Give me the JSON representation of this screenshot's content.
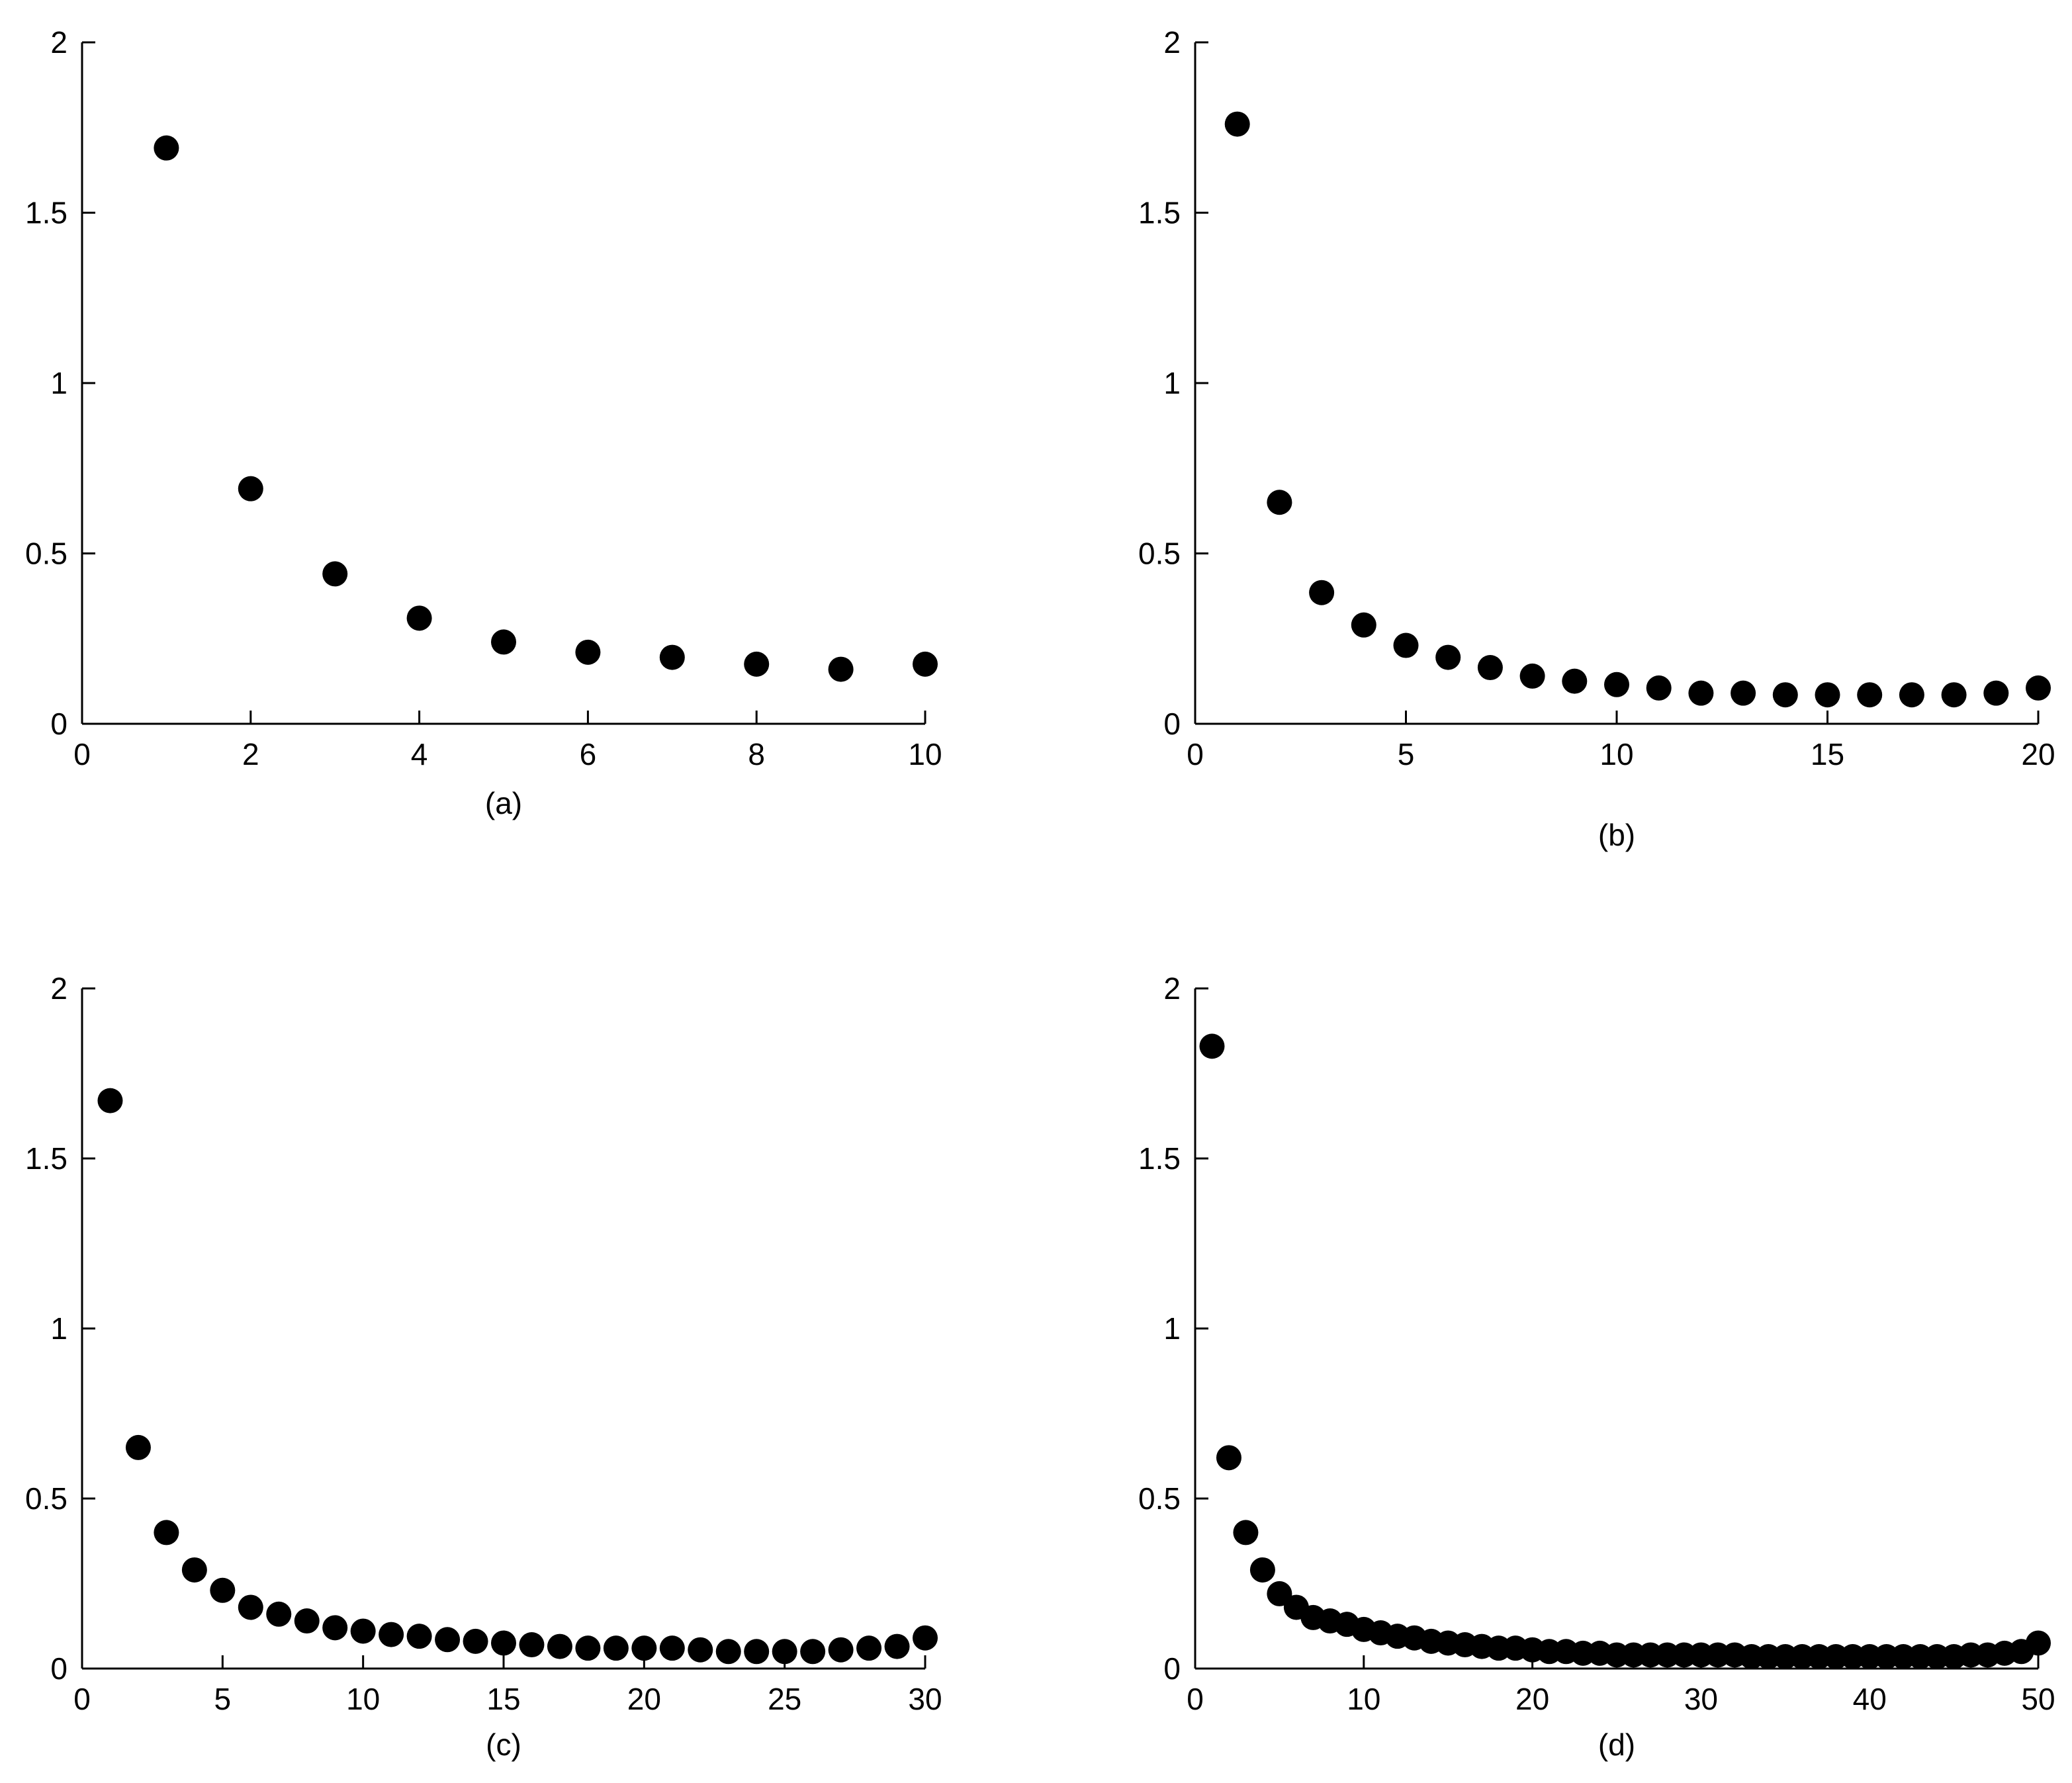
{
  "figure": {
    "panel_count": 4,
    "marker_color": "#000000",
    "axis_color": "#000000",
    "background": "#ffffff"
  },
  "chart_data": [
    {
      "type": "scatter",
      "panel_label": "(a)",
      "title": "",
      "xlabel": "",
      "ylabel": "",
      "xlim": [
        0,
        10
      ],
      "ylim": [
        0,
        2
      ],
      "xticks": [
        0,
        2,
        4,
        6,
        8,
        10
      ],
      "xtick_labels": [
        "0",
        "2",
        "4",
        "6",
        "8",
        "10"
      ],
      "yticks": [
        0,
        0.5,
        1,
        1.5,
        2
      ],
      "ytick_labels": [
        "0",
        "0.5",
        "1",
        "1.5",
        "2"
      ],
      "grid": false,
      "legend": "none",
      "x": [
        1,
        2,
        3,
        4,
        5,
        6,
        7,
        8,
        9,
        10
      ],
      "y": [
        1.69,
        0.69,
        0.44,
        0.31,
        0.24,
        0.21,
        0.195,
        0.175,
        0.16,
        0.175
      ]
    },
    {
      "type": "scatter",
      "panel_label": "(b)",
      "title": "",
      "xlabel": "",
      "ylabel": "",
      "xlim": [
        0,
        20
      ],
      "ylim": [
        0,
        2
      ],
      "xticks": [
        0,
        5,
        10,
        15,
        20
      ],
      "xtick_labels": [
        "0",
        "5",
        "10",
        "15",
        "20"
      ],
      "yticks": [
        0,
        0.5,
        1,
        1.5,
        2
      ],
      "ytick_labels": [
        "0",
        "0.5",
        "1",
        "1.5",
        "2"
      ],
      "grid": false,
      "legend": "none",
      "x": [
        1,
        2,
        3,
        4,
        5,
        6,
        7,
        8,
        9,
        10,
        11,
        12,
        13,
        14,
        15,
        16,
        17,
        18,
        19,
        20
      ],
      "y": [
        1.76,
        0.65,
        0.385,
        0.29,
        0.23,
        0.195,
        0.165,
        0.14,
        0.125,
        0.115,
        0.105,
        0.09,
        0.09,
        0.085,
        0.085,
        0.085,
        0.085,
        0.085,
        0.09,
        0.105
      ]
    },
    {
      "type": "scatter",
      "panel_label": "(c)",
      "title": "",
      "xlabel": "",
      "ylabel": "",
      "xlim": [
        0,
        30
      ],
      "ylim": [
        0,
        2
      ],
      "xticks": [
        0,
        5,
        10,
        15,
        20,
        25,
        30
      ],
      "xtick_labels": [
        "0",
        "5",
        "10",
        "15",
        "20",
        "25",
        "30"
      ],
      "yticks": [
        0,
        0.5,
        1,
        1.5,
        2
      ],
      "ytick_labels": [
        "0",
        "0.5",
        "1",
        "1.5",
        "2"
      ],
      "grid": false,
      "legend": "none",
      "x": [
        1,
        2,
        3,
        4,
        5,
        6,
        7,
        8,
        9,
        10,
        11,
        12,
        13,
        14,
        15,
        16,
        17,
        18,
        19,
        20,
        21,
        22,
        23,
        24,
        25,
        26,
        27,
        28,
        29,
        30
      ],
      "y": [
        1.67,
        0.65,
        0.4,
        0.29,
        0.23,
        0.18,
        0.16,
        0.14,
        0.12,
        0.11,
        0.1,
        0.095,
        0.085,
        0.08,
        0.075,
        0.07,
        0.065,
        0.06,
        0.06,
        0.06,
        0.06,
        0.055,
        0.05,
        0.05,
        0.05,
        0.05,
        0.055,
        0.06,
        0.065,
        0.09
      ]
    },
    {
      "type": "scatter",
      "panel_label": "(d)",
      "title": "",
      "xlabel": "",
      "ylabel": "",
      "xlim": [
        0,
        50
      ],
      "ylim": [
        0,
        2
      ],
      "xticks": [
        0,
        10,
        20,
        30,
        40,
        50
      ],
      "xtick_labels": [
        "0",
        "10",
        "20",
        "30",
        "40",
        "50"
      ],
      "yticks": [
        0,
        0.5,
        1,
        1.5,
        2
      ],
      "ytick_labels": [
        "0",
        "0.5",
        "1",
        "1.5",
        "2"
      ],
      "grid": false,
      "legend": "none",
      "x": [
        1,
        2,
        3,
        4,
        5,
        6,
        7,
        8,
        9,
        10,
        11,
        12,
        13,
        14,
        15,
        16,
        17,
        18,
        19,
        20,
        21,
        22,
        23,
        24,
        25,
        26,
        27,
        28,
        29,
        30,
        31,
        32,
        33,
        34,
        35,
        36,
        37,
        38,
        39,
        40,
        41,
        42,
        43,
        44,
        45,
        46,
        47,
        48,
        49,
        50
      ],
      "y": [
        1.83,
        0.62,
        0.4,
        0.29,
        0.22,
        0.18,
        0.15,
        0.14,
        0.13,
        0.115,
        0.105,
        0.095,
        0.09,
        0.08,
        0.075,
        0.07,
        0.065,
        0.06,
        0.06,
        0.055,
        0.05,
        0.05,
        0.045,
        0.045,
        0.04,
        0.04,
        0.04,
        0.04,
        0.04,
        0.04,
        0.04,
        0.04,
        0.035,
        0.035,
        0.035,
        0.035,
        0.035,
        0.035,
        0.035,
        0.035,
        0.035,
        0.035,
        0.035,
        0.035,
        0.035,
        0.04,
        0.04,
        0.045,
        0.05,
        0.075
      ]
    }
  ]
}
